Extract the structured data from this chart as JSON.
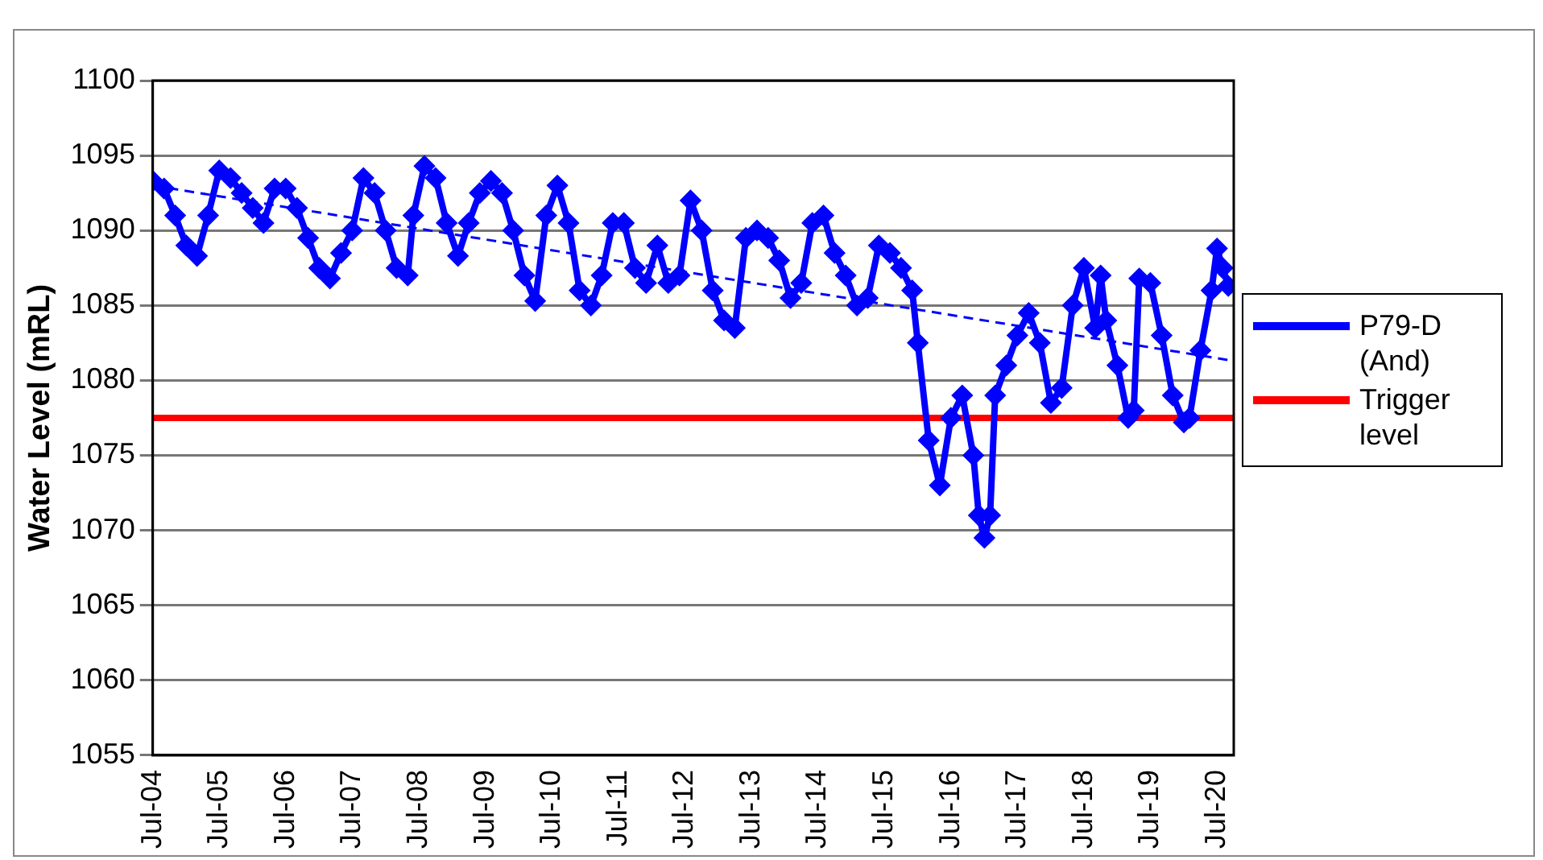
{
  "chart_data": {
    "type": "line",
    "ylabel": "Water Level (mRL)",
    "xlim": [
      "2004-07",
      "2020-10"
    ],
    "ylim": [
      1055,
      1100
    ],
    "yticks": [
      1055,
      1060,
      1065,
      1070,
      1075,
      1080,
      1085,
      1090,
      1095,
      1100
    ],
    "xticks": [
      {
        "value": "2004-07",
        "label": "Jul-04"
      },
      {
        "value": "2005-07",
        "label": "Jul-05"
      },
      {
        "value": "2006-07",
        "label": "Jul-06"
      },
      {
        "value": "2007-07",
        "label": "Jul-07"
      },
      {
        "value": "2008-07",
        "label": "Jul-08"
      },
      {
        "value": "2009-07",
        "label": "Jul-09"
      },
      {
        "value": "2010-07",
        "label": "Jul-10"
      },
      {
        "value": "2011-07",
        "label": "Jul-11"
      },
      {
        "value": "2012-07",
        "label": "Jul-12"
      },
      {
        "value": "2013-07",
        "label": "Jul-13"
      },
      {
        "value": "2014-07",
        "label": "Jul-14"
      },
      {
        "value": "2015-07",
        "label": "Jul-15"
      },
      {
        "value": "2016-07",
        "label": "Jul-16"
      },
      {
        "value": "2017-07",
        "label": "Jul-17"
      },
      {
        "value": "2018-07",
        "label": "Jul-18"
      },
      {
        "value": "2019-07",
        "label": "Jul-19"
      },
      {
        "value": "2020-07",
        "label": "Jul-20"
      }
    ],
    "grid": "y",
    "legend": "right",
    "marker": "diamond",
    "line_style": "solid",
    "series": [
      {
        "name": "P79-D (And)",
        "color": "#0000ff",
        "x": [
          "2004-07",
          "2004-09",
          "2004-11",
          "2005-01",
          "2005-03",
          "2005-05",
          "2005-07",
          "2005-09",
          "2005-11",
          "2006-01",
          "2006-03",
          "2006-05",
          "2006-07",
          "2006-09",
          "2006-11",
          "2007-01",
          "2007-03",
          "2007-05",
          "2007-07",
          "2007-09",
          "2007-11",
          "2008-01",
          "2008-03",
          "2008-05",
          "2008-06",
          "2008-08",
          "2008-10",
          "2008-12",
          "2009-02",
          "2009-04",
          "2009-06",
          "2009-08",
          "2009-10",
          "2009-12",
          "2010-02",
          "2010-04",
          "2010-06",
          "2010-08",
          "2010-10",
          "2010-12",
          "2011-02",
          "2011-04",
          "2011-06",
          "2011-08",
          "2011-10",
          "2011-12",
          "2012-02",
          "2012-04",
          "2012-06",
          "2012-08",
          "2012-10",
          "2012-12",
          "2013-02",
          "2013-04",
          "2013-06",
          "2013-08",
          "2013-10",
          "2013-12",
          "2014-02",
          "2014-04",
          "2014-06",
          "2014-08",
          "2014-10",
          "2014-12",
          "2015-02",
          "2015-04",
          "2015-06",
          "2015-08",
          "2015-10",
          "2015-12",
          "2016-01",
          "2016-03",
          "2016-05",
          "2016-07",
          "2016-09",
          "2016-11",
          "2016-12",
          "2017-01",
          "2017-02",
          "2017-03",
          "2017-05",
          "2017-07",
          "2017-09",
          "2017-11",
          "2018-01",
          "2018-03",
          "2018-05",
          "2018-07",
          "2018-09",
          "2018-10",
          "2018-11",
          "2019-01",
          "2019-03",
          "2019-04",
          "2019-05",
          "2019-07",
          "2019-09",
          "2019-11",
          "2020-01",
          "2020-02",
          "2020-04",
          "2020-06",
          "2020-07",
          "2020-08",
          "2020-09"
        ],
        "values": [
          1093.3,
          1092.8,
          1091,
          1089,
          1088.3,
          1091,
          1094,
          1093.5,
          1092.5,
          1091.5,
          1090.5,
          1092.8,
          1092.8,
          1091.5,
          1089.5,
          1087.5,
          1086.8,
          1088.5,
          1090,
          1093.5,
          1092.5,
          1090,
          1087.5,
          1087,
          1091,
          1094.3,
          1093.5,
          1090.5,
          1088.3,
          1090.5,
          1092.5,
          1093.3,
          1092.5,
          1090,
          1087,
          1085.3,
          1091,
          1093,
          1090.5,
          1086,
          1085,
          1087,
          1090.5,
          1090.5,
          1087.5,
          1086.5,
          1089,
          1086.5,
          1087,
          1092,
          1090,
          1086,
          1084,
          1083.5,
          1089.5,
          1090,
          1089.5,
          1088,
          1085.5,
          1086.5,
          1090.5,
          1091,
          1088.5,
          1087,
          1085,
          1085.5,
          1089,
          1088.5,
          1087.5,
          1086,
          1082.5,
          1076,
          1073,
          1077.5,
          1079,
          1075,
          1071,
          1069.5,
          1071,
          1079,
          1081,
          1083,
          1084.5,
          1082.5,
          1078.5,
          1079.5,
          1085,
          1087.5,
          1083.5,
          1087,
          1084,
          1081,
          1077.5,
          1078,
          1086.8,
          1086.5,
          1083,
          1079,
          1077.2,
          1077.5,
          1082,
          1086,
          1088.8,
          1087.5,
          1086.3
        ]
      },
      {
        "color": "#0000ff",
        "line_style": "dashed",
        "marker": "none",
        "x": [
          "2004-07",
          "2020-10"
        ],
        "values": [
          1093,
          1081.3
        ]
      },
      {
        "name": "Trigger level",
        "color": "#ff0000",
        "marker": "none",
        "x": [
          "2004-07",
          "2020-10"
        ],
        "values": [
          1077.5,
          1077.5
        ]
      }
    ]
  }
}
